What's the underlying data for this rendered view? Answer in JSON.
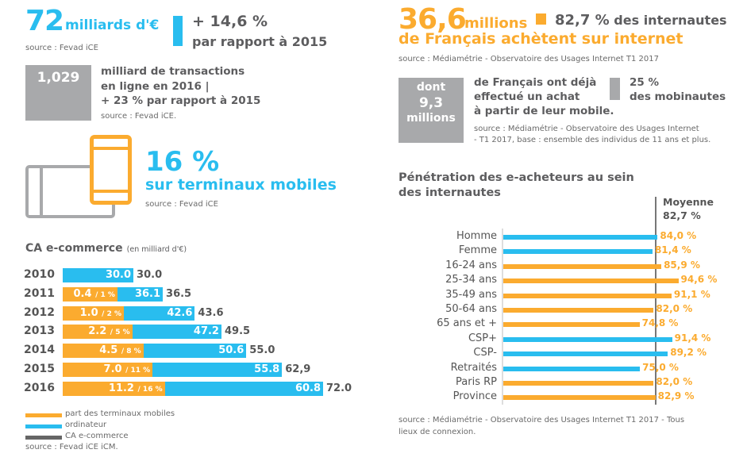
{
  "left": {
    "headline": {
      "value": "72",
      "unit": "milliards d'€",
      "source": "source : Fevad iCE",
      "change": "+ 14,6 %",
      "change_sub": "par rapport à 2015"
    },
    "transactions": {
      "value": "1,029",
      "lines": [
        "milliard de transactions",
        "en ligne en 2016 |",
        "+ 23 % par rapport à 2015"
      ],
      "source": "source : Fevad iCE."
    },
    "mobile": {
      "value": "16 %",
      "label": "sur terminaux mobiles",
      "source": "source : Fevad iCE",
      "icon": "tablet-phone-icon"
    }
  },
  "right": {
    "headline": {
      "value": "36,6",
      "unit": "millions",
      "pct": "82,7 %",
      "pct_label": "des internautes",
      "line2": "de Français achètent sur internet",
      "source": "source : Médiamétrie - Observatoire des Usages Internet T1 2017"
    },
    "mobile": {
      "box": [
        "dont",
        "9,3",
        "millions"
      ],
      "lines": [
        "de Français ont déjà",
        "effectué un achat",
        "à partir de leur mobile."
      ],
      "pct": "25 %",
      "pct_label": "des mobinautes",
      "source": [
        "source : Médiamétrie - Observatoire des Usages Internet",
        "- T1 2017, base : ensemble des individus de 11 ans et plus."
      ]
    }
  },
  "colors": {
    "blue": "#29bdef",
    "orange": "#fbab2f",
    "gray": "#a8a9ab",
    "dark": "#5d5d5f"
  },
  "chart_data": [
    {
      "type": "bar",
      "stacked": true,
      "orientation": "horizontal",
      "title": "CA e-commerce",
      "subtitle": "(en milliard d'€)",
      "categories": [
        "2010",
        "2011",
        "2012",
        "2013",
        "2014",
        "2015",
        "2016"
      ],
      "series": [
        {
          "name": "part des terminaux mobiles",
          "values": [
            null,
            0.4,
            1.0,
            2.2,
            4.5,
            7.0,
            11.2
          ],
          "labels": [
            "",
            "0.4",
            "1.0",
            "2.2",
            "4.5",
            "7.0",
            "11.2"
          ],
          "share_labels": [
            "",
            "/ 1 %",
            "/ 2 %",
            "/ 5 %",
            "/ 8 %",
            "/ 11 %",
            "/ 16 %"
          ]
        },
        {
          "name": "ordinateur",
          "values": [
            30.0,
            36.1,
            42.6,
            47.2,
            50.6,
            55.8,
            60.8
          ],
          "labels": [
            "30.0",
            "36.1",
            "42.6",
            "47.2",
            "50.6",
            "55.8",
            "60.8"
          ]
        },
        {
          "name": "CA e-commerce",
          "values": [
            30.0,
            36.5,
            43.6,
            49.5,
            55.0,
            62.9,
            72.0
          ],
          "labels": [
            "30.0",
            "36.5",
            "43.6",
            "49.5",
            "55.0",
            "62,9",
            "72.0"
          ]
        }
      ],
      "legend": "bottom-left",
      "source": "source : Fevad iCE iCM."
    },
    {
      "type": "bar",
      "orientation": "horizontal",
      "title": [
        "Pénétration des e-acheteurs au sein",
        "des internautes"
      ],
      "categories": [
        "Homme",
        "Femme",
        "16-24 ans",
        "25-34 ans",
        "35-49 ans",
        "50-64 ans",
        "65 ans et +",
        "CSP+",
        "CSP-",
        "Retraités",
        "Paris RP",
        "Province"
      ],
      "values": [
        84.0,
        81.4,
        85.9,
        94.6,
        91.1,
        82.0,
        74.8,
        91.4,
        89.2,
        75.0,
        82.0,
        82.9
      ],
      "labels": [
        "84,0 %",
        "81,4 %",
        "85,9 %",
        "94,6 %",
        "91,1 %",
        "82,0 %",
        "74,8 %",
        "91,4 %",
        "89,2 %",
        "75,0 %",
        "82,0 %",
        "82,9 %"
      ],
      "bar_colors": [
        "blue",
        "blue",
        "orange",
        "orange",
        "orange",
        "orange",
        "orange",
        "blue",
        "blue",
        "blue",
        "orange",
        "orange"
      ],
      "reference": {
        "label": "Moyenne",
        "value": 82.7,
        "value_label": "82,7 %"
      },
      "source": [
        "source : Médiamétrie - Observatoire des Usages Internet T1 2017 - Tous",
        "lieux de connexion."
      ]
    }
  ]
}
